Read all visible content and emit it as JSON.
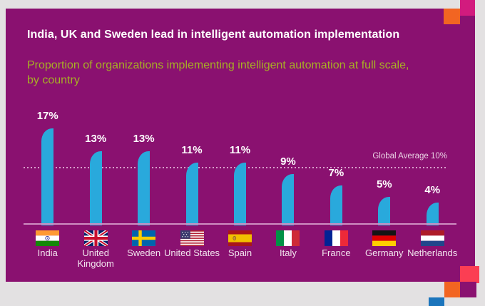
{
  "page": {
    "background_color": "#e3e1e2",
    "card_color": "#8a1170"
  },
  "header": {
    "title": "India, UK and Sweden lead in intelligent automation implementation",
    "title_color": "#ffffff",
    "subtitle": "Proportion of organizations implementing intelligent automation at full scale, by country",
    "subtitle_color": "#a7af25"
  },
  "chart_data": {
    "type": "bar",
    "title": "India, UK and Sweden lead in intelligent automation implementation",
    "subtitle": "Proportion of organizations implementing intelligent automation at full scale, by country",
    "categories": [
      "India",
      "United Kingdom",
      "Sweden",
      "United States",
      "Spain",
      "Italy",
      "France",
      "Germany",
      "Netherlands"
    ],
    "values": [
      17,
      13,
      13,
      11,
      11,
      9,
      7,
      5,
      4
    ],
    "value_labels": [
      "17%",
      "13%",
      "13%",
      "11%",
      "11%",
      "9%",
      "7%",
      "5%",
      "4%"
    ],
    "unit": "%",
    "xlabel": "",
    "ylabel": "",
    "ylim": [
      0,
      19
    ],
    "gridlines": false,
    "legend": "none",
    "bar_color": "#29a9dc",
    "value_label_color": "#ffffff",
    "category_label_color": "#f2e4ee",
    "axis_line_color": "#cf8ec2",
    "annotation": {
      "label": "Global Average 10%",
      "value": 10,
      "line_style": "dotted",
      "label_color": "#ead2e4"
    },
    "flags": [
      "india",
      "uk",
      "sweden",
      "usa",
      "spain",
      "italy",
      "france",
      "germany",
      "netherlands"
    ]
  },
  "decorations": {
    "top_pink_square": "#d21b7e",
    "top_orange_square": "#f26522",
    "bottom_red_square": "#fb3e53",
    "bottom_orange_square": "#f26522",
    "bottom_purple_square": "#8a1170",
    "bottom_blue_square": "#1b75bc"
  }
}
